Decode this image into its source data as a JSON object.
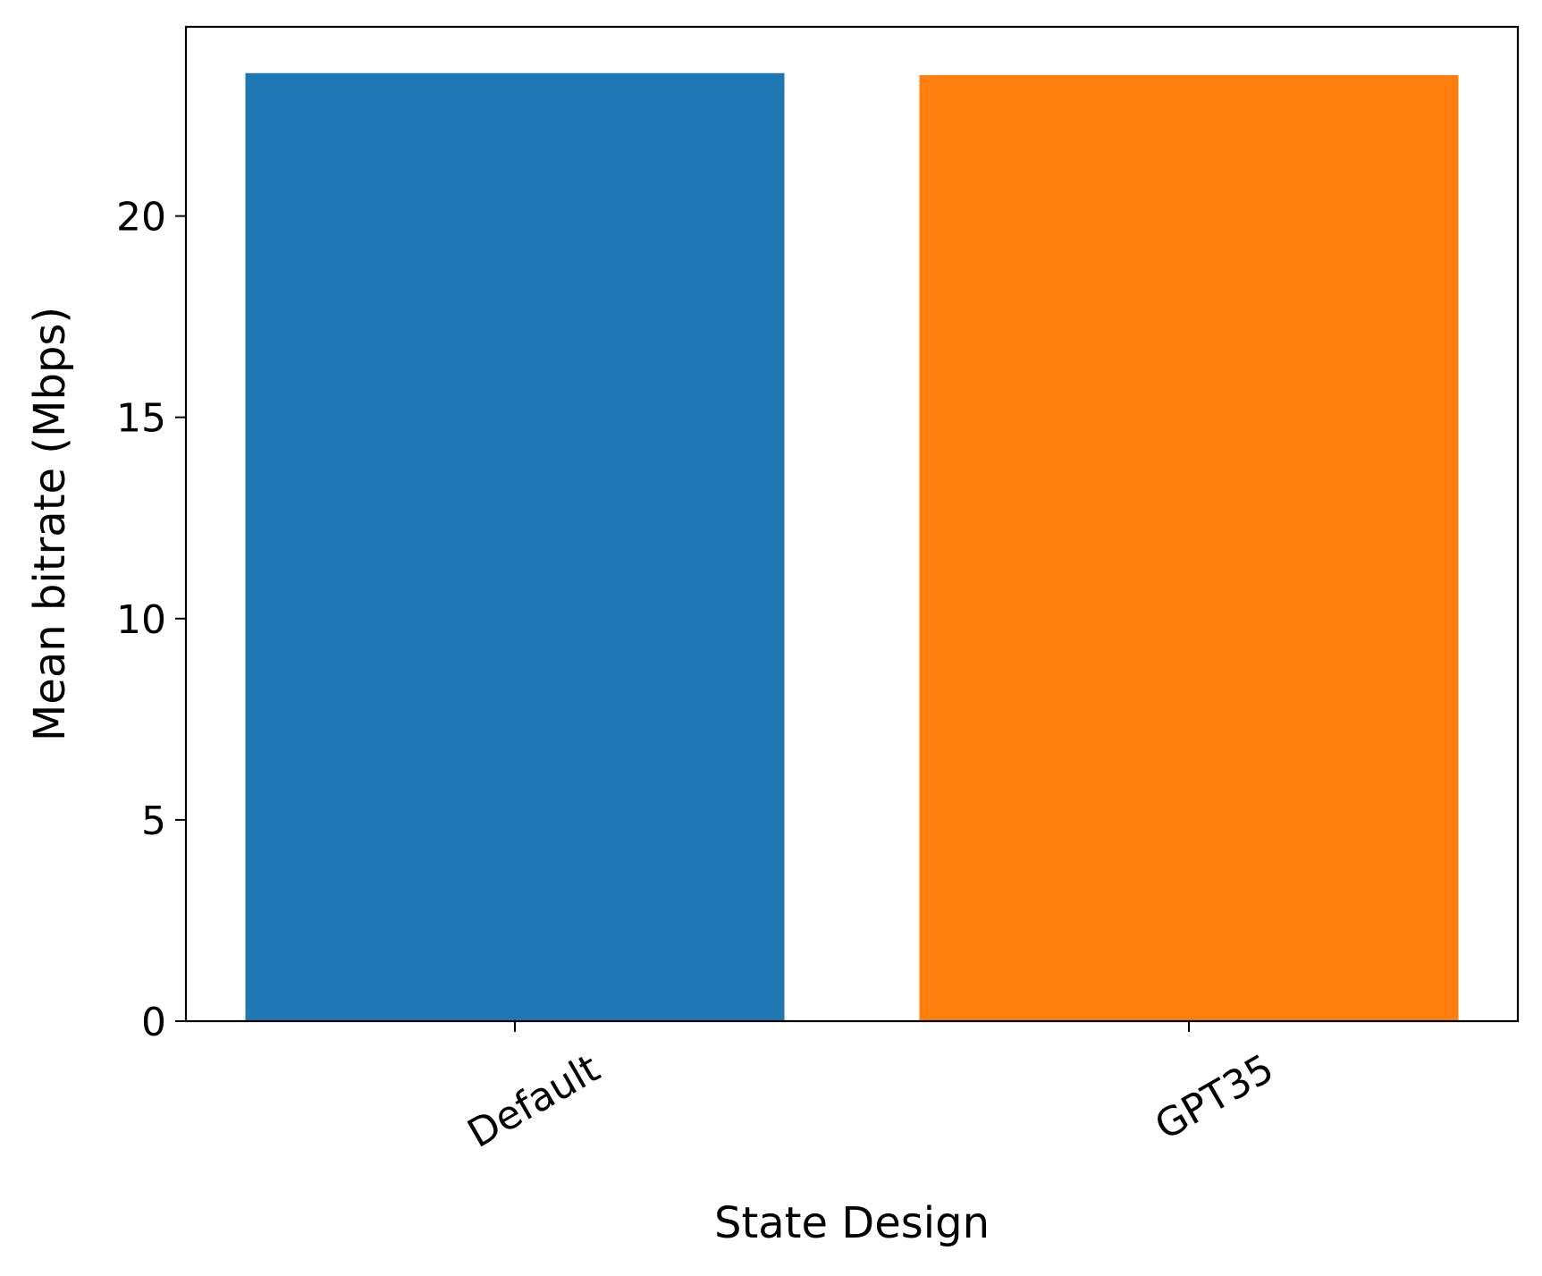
{
  "chart_data": {
    "type": "bar",
    "title": "",
    "xlabel": "State Design",
    "ylabel": "Mean bitrate (Mbps)",
    "categories": [
      "Default",
      "GPT35"
    ],
    "values": [
      23.55,
      23.5
    ],
    "colors": [
      "#1f77b4",
      "#ff7f0e"
    ],
    "ylim": [
      0,
      24.7
    ],
    "yticks": [
      0,
      5,
      10,
      15,
      20
    ],
    "grid": false,
    "legend": "none"
  }
}
